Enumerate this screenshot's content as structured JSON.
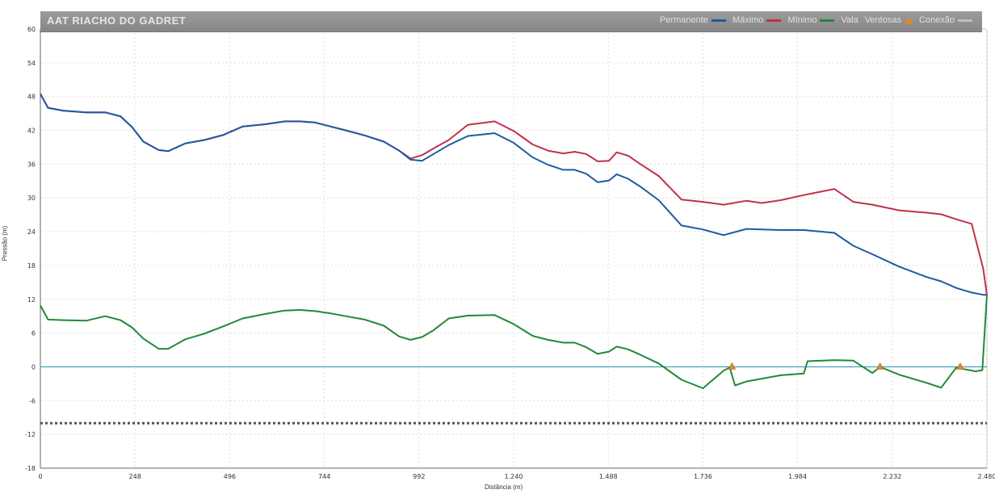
{
  "chart_data": {
    "type": "line",
    "title": "AAT RIACHO DO GADRET",
    "xlabel": "Distância (m)",
    "ylabel": "Pressão (m)",
    "xlim": [
      0,
      2480
    ],
    "ylim": [
      -18,
      60
    ],
    "x_ticks": [
      0,
      248,
      496,
      744,
      992,
      1240,
      1488,
      1736,
      1984,
      2232,
      2480
    ],
    "x_tick_labels": [
      "0",
      "248",
      "496",
      "744",
      "992",
      "1.240",
      "1.488",
      "1.736",
      "1.984",
      "2.232",
      "2.480"
    ],
    "y_ticks": [
      -18,
      -12,
      -6,
      0,
      6,
      12,
      18,
      24,
      30,
      36,
      42,
      48,
      54,
      60
    ],
    "grid": true,
    "legend_position": "top-right",
    "legend": [
      {
        "label": "Permanente",
        "color": "#1f5aa6",
        "style": "line"
      },
      {
        "label": "Máximo",
        "color": "#c0314a",
        "style": "line"
      },
      {
        "label": "Mínimo",
        "color": "#1f8a3a",
        "style": "line"
      },
      {
        "label": "Vala",
        "color": "#1f8a3a",
        "style": "line"
      },
      {
        "label": "Ventosas",
        "color": "#e08a1e",
        "style": "triangle"
      },
      {
        "label": "Conexão",
        "color": "#bdbdbd",
        "style": "line"
      }
    ],
    "series": [
      {
        "name": "Máximo",
        "color": "#c0314a",
        "x": [
          0,
          20,
          60,
          120,
          170,
          210,
          240,
          270,
          310,
          335,
          380,
          430,
          480,
          530,
          590,
          640,
          680,
          720,
          760,
          800,
          850,
          900,
          940,
          970,
          1000,
          1030,
          1070,
          1120,
          1190,
          1240,
          1290,
          1330,
          1370,
          1400,
          1430,
          1460,
          1490,
          1510,
          1540,
          1570,
          1620,
          1680,
          1736,
          1790,
          1850,
          1890,
          1940,
          2000,
          2080,
          2130,
          2180,
          2250,
          2320,
          2360,
          2400,
          2440,
          2470,
          2480
        ],
        "values": [
          48.5,
          46,
          45.5,
          45.2,
          45.2,
          44.5,
          42.6,
          40,
          38.5,
          38.3,
          39.7,
          40.3,
          41.2,
          42.7,
          43.1,
          43.6,
          43.6,
          43.4,
          42.7,
          42,
          41.1,
          40,
          38.4,
          37,
          37.6,
          38.8,
          40.3,
          43,
          43.6,
          41.9,
          39.5,
          38.4,
          37.9,
          38.2,
          37.8,
          36.5,
          36.6,
          38.1,
          37.5,
          36.1,
          33.9,
          29.7,
          29.3,
          28.8,
          29.5,
          29.1,
          29.6,
          30.5,
          31.6,
          29.3,
          28.8,
          27.8,
          27.4,
          27.1,
          26.2,
          25.4,
          17.5,
          12.8
        ]
      },
      {
        "name": "Permanente",
        "color": "#1f5aa6",
        "x": [
          0,
          20,
          60,
          120,
          170,
          210,
          240,
          270,
          310,
          335,
          380,
          430,
          480,
          530,
          590,
          640,
          680,
          720,
          760,
          800,
          850,
          900,
          940,
          970,
          1000,
          1030,
          1070,
          1120,
          1190,
          1240,
          1290,
          1330,
          1370,
          1400,
          1430,
          1460,
          1490,
          1510,
          1540,
          1570,
          1620,
          1680,
          1736,
          1790,
          1850,
          1890,
          1940,
          2000,
          2080,
          2130,
          2180,
          2250,
          2320,
          2360,
          2400,
          2440,
          2470,
          2480
        ],
        "values": [
          48.5,
          46,
          45.5,
          45.2,
          45.2,
          44.5,
          42.6,
          40,
          38.5,
          38.3,
          39.7,
          40.3,
          41.2,
          42.7,
          43.1,
          43.6,
          43.6,
          43.4,
          42.7,
          42,
          41.1,
          40,
          38.4,
          36.8,
          36.6,
          37.8,
          39.4,
          41,
          41.5,
          39.8,
          37.2,
          35.9,
          35,
          35,
          34.3,
          32.8,
          33.1,
          34.2,
          33.4,
          32.1,
          29.6,
          25.1,
          24.4,
          23.4,
          24.5,
          24.4,
          24.3,
          24.3,
          23.8,
          21.5,
          20,
          17.8,
          16,
          15.2,
          14,
          13.2,
          12.8,
          12.8
        ]
      },
      {
        "name": "Mínimo",
        "color": "#1f8a3a",
        "x": [
          0,
          20,
          60,
          120,
          170,
          210,
          240,
          270,
          310,
          335,
          380,
          430,
          480,
          530,
          590,
          640,
          680,
          720,
          760,
          800,
          850,
          900,
          940,
          970,
          1000,
          1030,
          1070,
          1120,
          1190,
          1240,
          1290,
          1330,
          1370,
          1400,
          1430,
          1460,
          1490,
          1510,
          1540,
          1570,
          1620,
          1680,
          1736,
          1790,
          1806,
          1820,
          1850,
          1890,
          1940,
          2000,
          2010,
          2080,
          2130,
          2180,
          2200,
          2250,
          2320,
          2360,
          2400,
          2420,
          2450,
          2468,
          2480
        ],
        "values": [
          10.9,
          8.4,
          8.3,
          8.2,
          9,
          8.3,
          7,
          5,
          3.2,
          3.2,
          4.9,
          5.9,
          7.2,
          8.6,
          9.4,
          10,
          10.1,
          9.9,
          9.5,
          9,
          8.4,
          7.3,
          5.4,
          4.8,
          5.3,
          6.5,
          8.6,
          9.1,
          9.2,
          7.6,
          5.5,
          4.8,
          4.3,
          4.3,
          3.5,
          2.3,
          2.7,
          3.6,
          3.1,
          2.2,
          0.6,
          -2.3,
          -3.8,
          -0.7,
          -0.1,
          -3.3,
          -2.6,
          -2.1,
          -1.5,
          -1.2,
          1,
          1.2,
          1.1,
          -1.1,
          0,
          -1.4,
          -2.8,
          -3.7,
          -0.1,
          -0.4,
          -0.8,
          -0.6,
          12.8
        ]
      }
    ],
    "reference_lines": [
      {
        "name": "Vala",
        "y": 0,
        "color": "#2a8fb0",
        "style": "solid"
      },
      {
        "name": "Conexão",
        "y": -10,
        "color": "#555555",
        "style": "dotted"
      }
    ],
    "markers": [
      {
        "name": "Ventosas",
        "type": "triangle",
        "color": "#e08a1e",
        "x": [
          1812,
          2200,
          2410
        ],
        "y": [
          0,
          0,
          0
        ]
      }
    ]
  }
}
